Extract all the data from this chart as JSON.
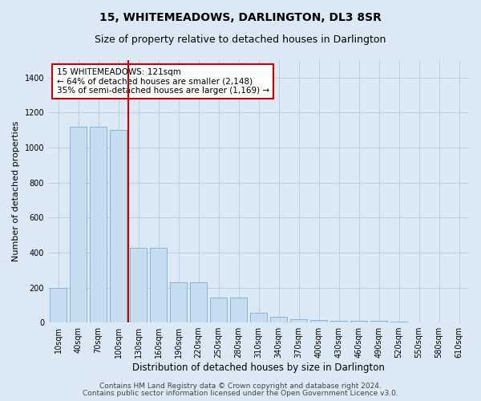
{
  "title": "15, WHITEMEADOWS, DARLINGTON, DL3 8SR",
  "subtitle": "Size of property relative to detached houses in Darlington",
  "xlabel": "Distribution of detached houses by size in Darlington",
  "ylabel": "Number of detached properties",
  "categories": [
    "10sqm",
    "40sqm",
    "70sqm",
    "100sqm",
    "130sqm",
    "160sqm",
    "190sqm",
    "220sqm",
    "250sqm",
    "280sqm",
    "310sqm",
    "340sqm",
    "370sqm",
    "400sqm",
    "430sqm",
    "460sqm",
    "490sqm",
    "520sqm",
    "550sqm",
    "580sqm",
    "610sqm"
  ],
  "values": [
    200,
    1120,
    1120,
    1100,
    425,
    425,
    230,
    230,
    145,
    145,
    55,
    35,
    20,
    15,
    10,
    10,
    10,
    5,
    2,
    2,
    2
  ],
  "bar_color": "#c9ddf0",
  "bar_edge_color": "#88b4d8",
  "vline_x": 3.5,
  "vline_color": "#cc0000",
  "annotation_text": "15 WHITEMEADOWS: 121sqm\n← 64% of detached houses are smaller (2,148)\n35% of semi-detached houses are larger (1,169) →",
  "annotation_box_color": "#ffffff",
  "annotation_box_edge": "#cc0000",
  "ylim": [
    0,
    1500
  ],
  "yticks": [
    0,
    200,
    400,
    600,
    800,
    1000,
    1200,
    1400
  ],
  "grid_color": "#c0cfe0",
  "background_color": "#dce9f5",
  "plot_bg_color": "#dce9f5",
  "footer_line1": "Contains HM Land Registry data © Crown copyright and database right 2024.",
  "footer_line2": "Contains public sector information licensed under the Open Government Licence v3.0.",
  "title_fontsize": 10,
  "subtitle_fontsize": 9,
  "xlabel_fontsize": 8.5,
  "ylabel_fontsize": 8,
  "tick_fontsize": 7,
  "footer_fontsize": 6.5,
  "annot_fontsize": 7.5
}
